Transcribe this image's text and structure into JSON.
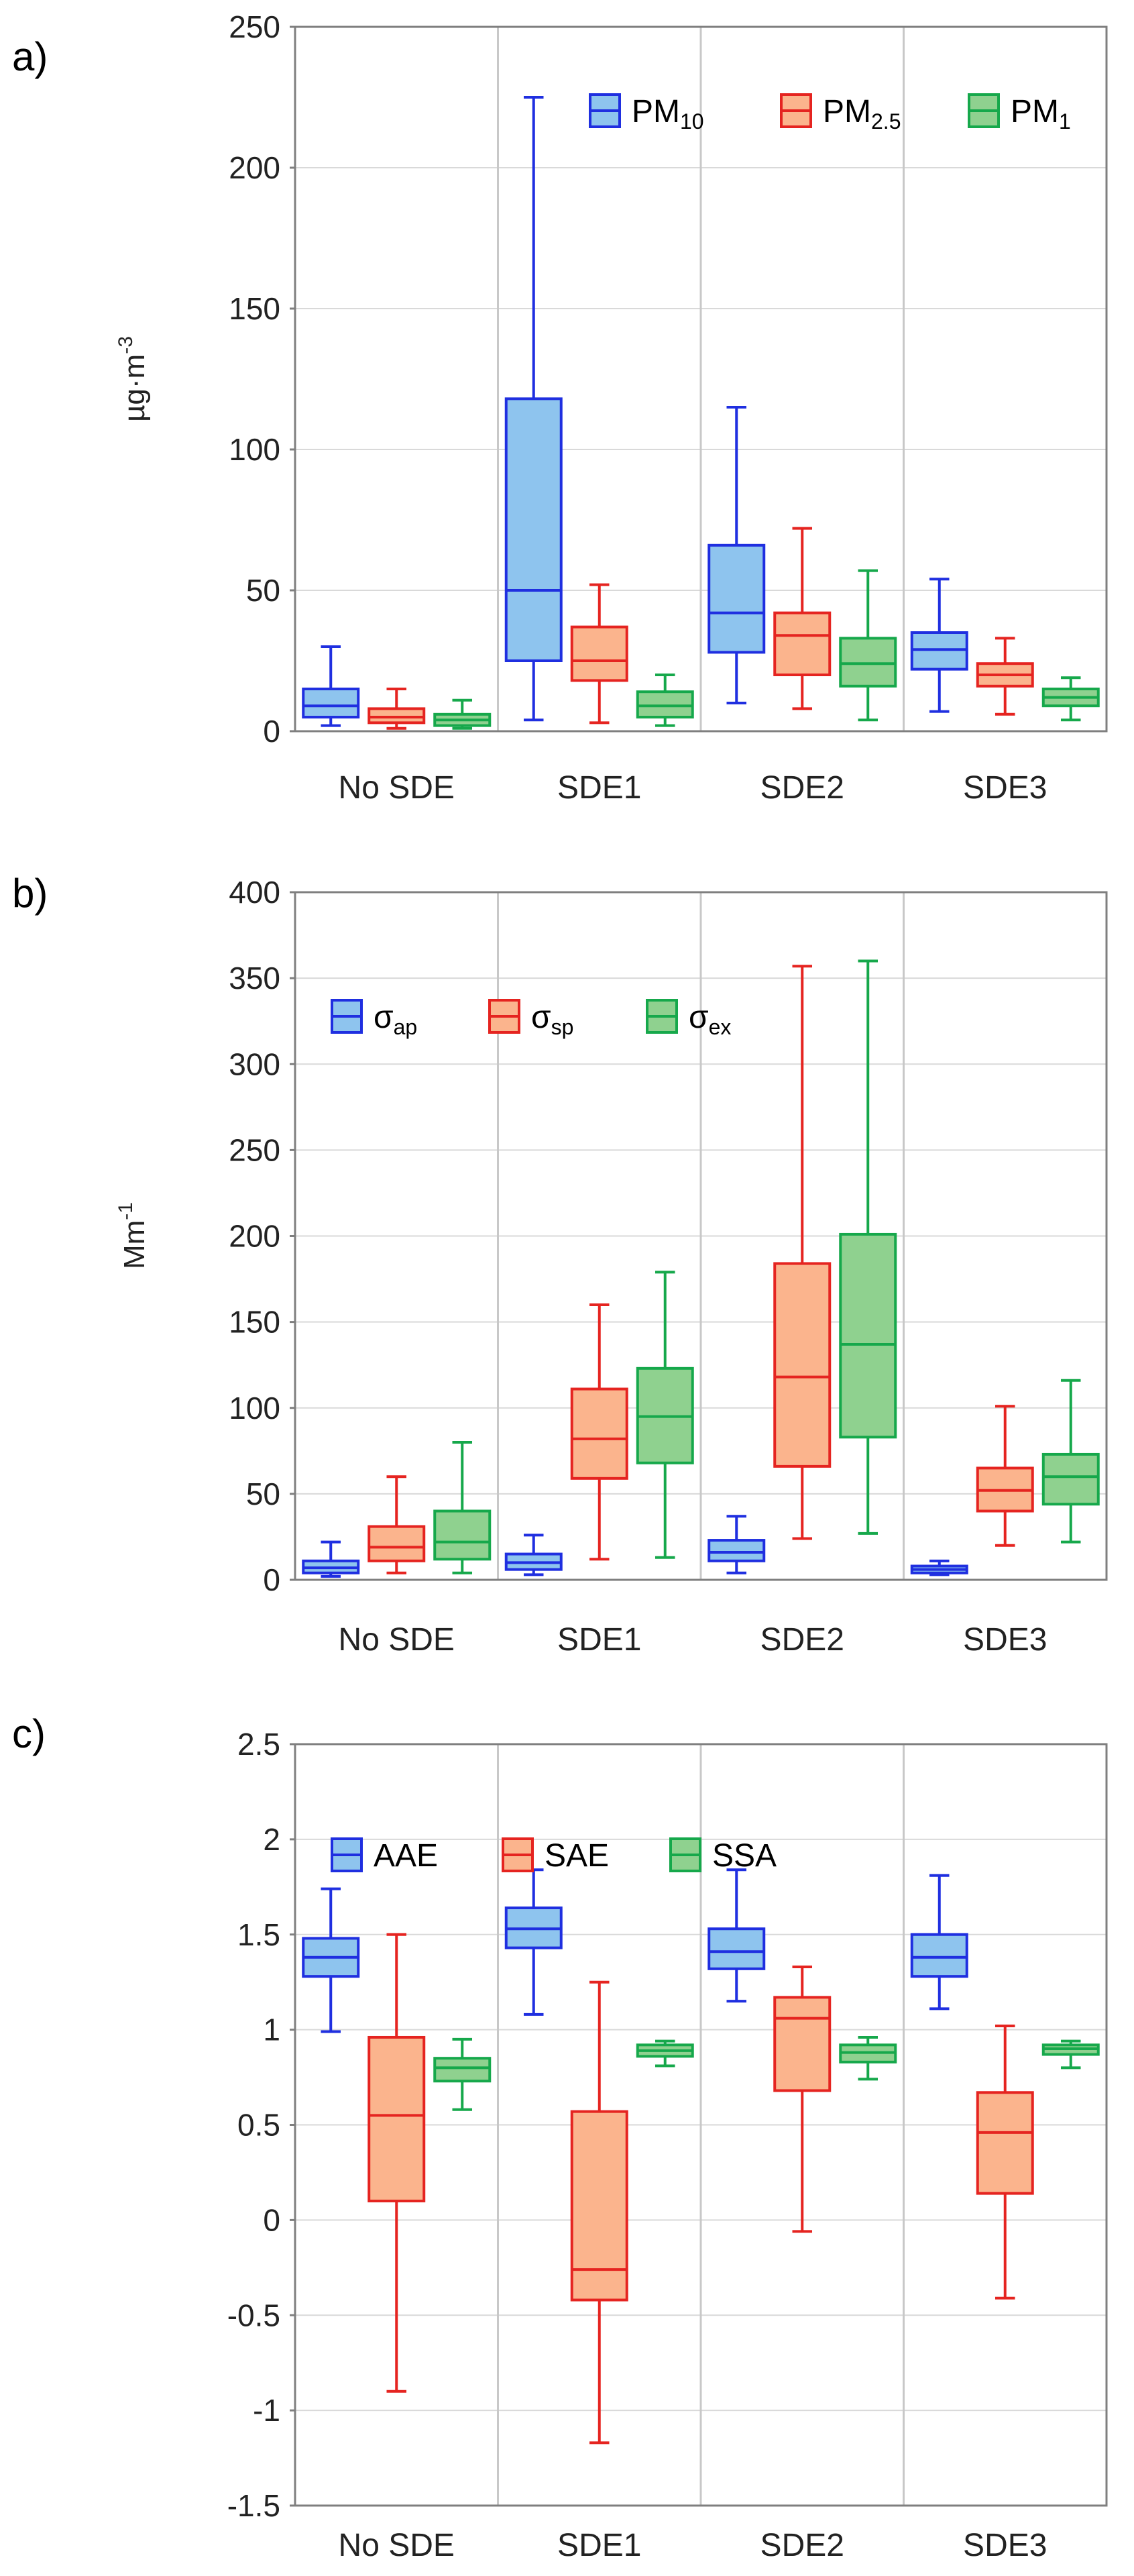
{
  "chart_data": [
    {
      "type": "boxplot",
      "panel_label": "a)",
      "ylabel": "µg·m",
      "ylabel_sup": "-3",
      "ylim": [
        0,
        250
      ],
      "yticks": [
        0,
        50,
        100,
        150,
        200,
        250
      ],
      "ytick_labels": [
        "0",
        "50",
        "100",
        "150",
        "200",
        "250"
      ],
      "categories": [
        "No SDE",
        "SDE1",
        "SDE2",
        "SDE3"
      ],
      "legend_position": "top-right",
      "series": [
        {
          "name": "PM",
          "sub": "10",
          "fill": "#8ec4ee",
          "stroke": "#1f2fe0",
          "boxes": [
            {
              "min": 2,
              "q1": 5,
              "median": 9,
              "q3": 15,
              "max": 30
            },
            {
              "min": 4,
              "q1": 25,
              "median": 50,
              "q3": 118,
              "max": 225
            },
            {
              "min": 10,
              "q1": 28,
              "median": 42,
              "q3": 66,
              "max": 115
            },
            {
              "min": 7,
              "q1": 22,
              "median": 29,
              "q3": 35,
              "max": 54
            }
          ]
        },
        {
          "name": "PM",
          "sub": "2.5",
          "fill": "#fbb48d",
          "stroke": "#e52420",
          "boxes": [
            {
              "min": 1,
              "q1": 3,
              "median": 5,
              "q3": 8,
              "max": 15
            },
            {
              "min": 3,
              "q1": 18,
              "median": 25,
              "q3": 37,
              "max": 52
            },
            {
              "min": 8,
              "q1": 20,
              "median": 34,
              "q3": 42,
              "max": 72
            },
            {
              "min": 6,
              "q1": 16,
              "median": 20,
              "q3": 24,
              "max": 33
            }
          ]
        },
        {
          "name": "PM",
          "sub": "1",
          "fill": "#8fd18f",
          "stroke": "#16a84b",
          "boxes": [
            {
              "min": 1,
              "q1": 2,
              "median": 4,
              "q3": 6,
              "max": 11
            },
            {
              "min": 2,
              "q1": 5,
              "median": 9,
              "q3": 14,
              "max": 20
            },
            {
              "min": 4,
              "q1": 16,
              "median": 24,
              "q3": 33,
              "max": 57
            },
            {
              "min": 4,
              "q1": 9,
              "median": 12,
              "q3": 15,
              "max": 19
            }
          ]
        }
      ]
    },
    {
      "type": "boxplot",
      "panel_label": "b)",
      "ylabel": "Mm",
      "ylabel_sup": "-1",
      "ylim": [
        0,
        400
      ],
      "yticks": [
        0,
        50,
        100,
        150,
        200,
        250,
        300,
        350,
        400
      ],
      "ytick_labels": [
        "0",
        "50",
        "100",
        "150",
        "200",
        "250",
        "300",
        "350",
        "400"
      ],
      "categories": [
        "No SDE",
        "SDE1",
        "SDE2",
        "SDE3"
      ],
      "legend_position": "top-left",
      "series": [
        {
          "name": "σ",
          "sub": "ap",
          "fill": "#8ec4ee",
          "stroke": "#1f2fe0",
          "boxes": [
            {
              "min": 2,
              "q1": 4,
              "median": 7,
              "q3": 11,
              "max": 22
            },
            {
              "min": 3,
              "q1": 6,
              "median": 10,
              "q3": 15,
              "max": 26
            },
            {
              "min": 4,
              "q1": 11,
              "median": 16,
              "q3": 23,
              "max": 37
            },
            {
              "min": 3,
              "q1": 4,
              "median": 6,
              "q3": 8,
              "max": 11
            }
          ]
        },
        {
          "name": "σ",
          "sub": "sp",
          "fill": "#fbb48d",
          "stroke": "#e52420",
          "boxes": [
            {
              "min": 4,
              "q1": 11,
              "median": 19,
              "q3": 31,
              "max": 60
            },
            {
              "min": 12,
              "q1": 59,
              "median": 82,
              "q3": 111,
              "max": 160
            },
            {
              "min": 24,
              "q1": 66,
              "median": 118,
              "q3": 184,
              "max": 357
            },
            {
              "min": 20,
              "q1": 40,
              "median": 52,
              "q3": 65,
              "max": 101
            }
          ]
        },
        {
          "name": "σ",
          "sub": "ex",
          "fill": "#8fd18f",
          "stroke": "#16a84b",
          "boxes": [
            {
              "min": 4,
              "q1": 12,
              "median": 22,
              "q3": 40,
              "max": 80
            },
            {
              "min": 13,
              "q1": 68,
              "median": 95,
              "q3": 123,
              "max": 179
            },
            {
              "min": 27,
              "q1": 83,
              "median": 137,
              "q3": 201,
              "max": 360
            },
            {
              "min": 22,
              "q1": 44,
              "median": 60,
              "q3": 73,
              "max": 116
            }
          ]
        }
      ]
    },
    {
      "type": "boxplot",
      "panel_label": "c)",
      "ylabel": "",
      "ylabel_sup": "",
      "ylim": [
        -1.5,
        2.5
      ],
      "yticks": [
        -1.5,
        -1,
        -0.5,
        0,
        0.5,
        1,
        1.5,
        2,
        2.5
      ],
      "ytick_labels": [
        "-1.5",
        "-1",
        "-0.5",
        "0",
        "0.5",
        "1",
        "1.5",
        "2",
        "2.5"
      ],
      "categories": [
        "No SDE",
        "SDE1",
        "SDE2",
        "SDE3"
      ],
      "legend_position": "top-left",
      "series": [
        {
          "name": "AAE",
          "sub": "",
          "fill": "#8ec4ee",
          "stroke": "#1f2fe0",
          "boxes": [
            {
              "min": 0.99,
              "q1": 1.28,
              "median": 1.38,
              "q3": 1.48,
              "max": 1.74
            },
            {
              "min": 1.08,
              "q1": 1.43,
              "median": 1.53,
              "q3": 1.64,
              "max": 1.84
            },
            {
              "min": 1.15,
              "q1": 1.32,
              "median": 1.41,
              "q3": 1.53,
              "max": 1.84
            },
            {
              "min": 1.11,
              "q1": 1.28,
              "median": 1.38,
              "q3": 1.5,
              "max": 1.81
            }
          ]
        },
        {
          "name": "SAE",
          "sub": "",
          "fill": "#fbb48d",
          "stroke": "#e52420",
          "boxes": [
            {
              "min": -0.9,
              "q1": 0.1,
              "median": 0.55,
              "q3": 0.96,
              "max": 1.5
            },
            {
              "min": -1.17,
              "q1": -0.42,
              "median": -0.26,
              "q3": 0.57,
              "max": 1.25
            },
            {
              "min": -0.06,
              "q1": 0.68,
              "median": 1.06,
              "q3": 1.17,
              "max": 1.33
            },
            {
              "min": -0.41,
              "q1": 0.14,
              "median": 0.46,
              "q3": 0.67,
              "max": 1.02
            }
          ]
        },
        {
          "name": "SSA",
          "sub": "",
          "fill": "#8fd18f",
          "stroke": "#16a84b",
          "boxes": [
            {
              "min": 0.58,
              "q1": 0.73,
              "median": 0.8,
              "q3": 0.85,
              "max": 0.95
            },
            {
              "min": 0.81,
              "q1": 0.86,
              "median": 0.89,
              "q3": 0.92,
              "max": 0.94
            },
            {
              "min": 0.74,
              "q1": 0.83,
              "median": 0.88,
              "q3": 0.92,
              "max": 0.96
            },
            {
              "min": 0.8,
              "q1": 0.87,
              "median": 0.9,
              "q3": 0.92,
              "max": 0.94
            }
          ]
        }
      ]
    }
  ]
}
